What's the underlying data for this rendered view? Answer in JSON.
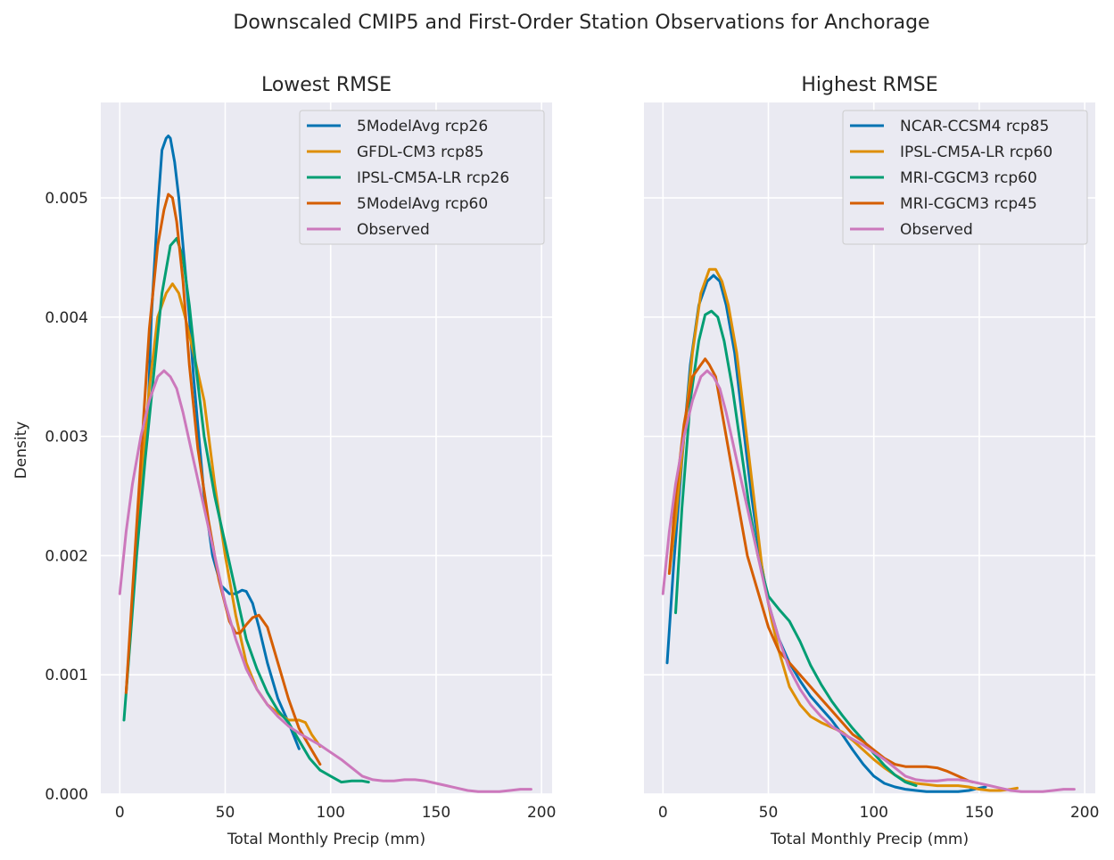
{
  "figure": {
    "suptitle": "Downscaled CMIP5 and First-Order Station Observations for Anchorage"
  },
  "chart_data": [
    {
      "type": "line",
      "title": "Lowest RMSE",
      "xlabel": "Total Monthly Precip (mm)",
      "ylabel": "Density",
      "xlim": [
        -9,
        205
      ],
      "ylim": [
        0,
        0.0058
      ],
      "xticks": [
        "0",
        "50",
        "100",
        "150",
        "200"
      ],
      "yticks": [
        "0.000",
        "0.001",
        "0.002",
        "0.003",
        "0.004",
        "0.005"
      ],
      "grid": true,
      "legend_position": "top-right",
      "series": [
        {
          "name": "5ModelAvg rcp26",
          "color": "#0173b2",
          "x": [
            13,
            15,
            18,
            20,
            22,
            23,
            24,
            26,
            28,
            30,
            33,
            35,
            38,
            40,
            44,
            48,
            52,
            55,
            58,
            60,
            63,
            66,
            70,
            75,
            80,
            85
          ],
          "y": [
            0.00297,
            0.004,
            0.0049,
            0.0054,
            0.0055,
            0.00552,
            0.0055,
            0.0053,
            0.005,
            0.0046,
            0.004,
            0.0035,
            0.0029,
            0.0025,
            0.002,
            0.00175,
            0.00168,
            0.00168,
            0.00171,
            0.0017,
            0.0016,
            0.0014,
            0.0011,
            0.0008,
            0.0006,
            0.00038
          ]
        },
        {
          "name": "GFDL-CM3 rcp85",
          "color": "#de8f05",
          "x": [
            3,
            6,
            10,
            14,
            18,
            22,
            25,
            28,
            31,
            35,
            40,
            45,
            50,
            55,
            60,
            65,
            70,
            75,
            80,
            85,
            88,
            91,
            95
          ],
          "y": [
            0.00085,
            0.0016,
            0.0026,
            0.0034,
            0.004,
            0.0042,
            0.00428,
            0.0042,
            0.004,
            0.0037,
            0.0033,
            0.0026,
            0.002,
            0.0015,
            0.0011,
            0.00088,
            0.00075,
            0.00068,
            0.00062,
            0.00062,
            0.0006,
            0.0005,
            0.0004
          ]
        },
        {
          "name": "IPSL-CM5A-LR rcp26",
          "color": "#029e73",
          "x": [
            2,
            5,
            8,
            12,
            16,
            20,
            24,
            27,
            30,
            33,
            36,
            40,
            45,
            50,
            55,
            60,
            65,
            70,
            75,
            80,
            85,
            90,
            95,
            100,
            105,
            110,
            115,
            118
          ],
          "y": [
            0.00062,
            0.0013,
            0.002,
            0.0028,
            0.0035,
            0.0042,
            0.0046,
            0.00466,
            0.0045,
            0.0041,
            0.0036,
            0.003,
            0.0025,
            0.0021,
            0.0017,
            0.0013,
            0.00105,
            0.00085,
            0.0007,
            0.0006,
            0.00045,
            0.0003,
            0.0002,
            0.00015,
            0.0001,
            0.00011,
            0.00011,
            0.0001
          ]
        },
        {
          "name": "5ModelAvg rcp60",
          "color": "#d55e00",
          "x": [
            3,
            6,
            10,
            14,
            18,
            21,
            23,
            25,
            27,
            30,
            33,
            37,
            42,
            47,
            52,
            55,
            57,
            60,
            63,
            66,
            70,
            75,
            80,
            85,
            90,
            95
          ],
          "y": [
            0.00085,
            0.0017,
            0.0028,
            0.0039,
            0.0046,
            0.0049,
            0.00503,
            0.005,
            0.0048,
            0.0043,
            0.0036,
            0.0029,
            0.0023,
            0.0018,
            0.00145,
            0.00135,
            0.00135,
            0.00142,
            0.00148,
            0.0015,
            0.0014,
            0.0011,
            0.0008,
            0.00055,
            0.0004,
            0.00025
          ]
        },
        {
          "name": "Observed",
          "color": "#cc78bc",
          "x": [
            0,
            3,
            6,
            10,
            14,
            18,
            21,
            24,
            27,
            30,
            35,
            40,
            45,
            50,
            55,
            60,
            65,
            70,
            75,
            80,
            85,
            90,
            95,
            100,
            105,
            110,
            115,
            120,
            125,
            130,
            135,
            140,
            145,
            150,
            155,
            160,
            165,
            170,
            175,
            180,
            185,
            190,
            195
          ],
          "y": [
            0.00168,
            0.0022,
            0.0026,
            0.003,
            0.0033,
            0.0035,
            0.00355,
            0.0035,
            0.0034,
            0.0032,
            0.0028,
            0.0024,
            0.002,
            0.0016,
            0.0013,
            0.00105,
            0.00088,
            0.00075,
            0.00065,
            0.00057,
            0.00051,
            0.00046,
            0.00041,
            0.00035,
            0.00029,
            0.00022,
            0.00015,
            0.00012,
            0.00011,
            0.00011,
            0.00012,
            0.00012,
            0.00011,
            9e-05,
            7e-05,
            5e-05,
            3e-05,
            2e-05,
            2e-05,
            2e-05,
            3e-05,
            4e-05,
            4e-05
          ]
        }
      ]
    },
    {
      "type": "line",
      "title": "Highest RMSE",
      "xlabel": "Total Monthly Precip (mm)",
      "ylabel": "",
      "xlim": [
        -9,
        205
      ],
      "ylim": [
        0,
        0.0058
      ],
      "xticks": [
        "0",
        "50",
        "100",
        "150",
        "200"
      ],
      "yticks": [],
      "grid": true,
      "legend_position": "top-right",
      "series": [
        {
          "name": "NCAR-CCSM4 rcp85",
          "color": "#0173b2",
          "x": [
            2,
            5,
            9,
            13,
            17,
            21,
            24,
            27,
            30,
            34,
            38,
            42,
            46,
            50,
            55,
            60,
            65,
            70,
            75,
            80,
            85,
            90,
            95,
            100,
            105,
            110,
            115,
            120,
            125,
            130,
            135,
            140,
            145,
            150,
            153
          ],
          "y": [
            0.0011,
            0.0019,
            0.0028,
            0.0036,
            0.0041,
            0.0043,
            0.00435,
            0.0043,
            0.0041,
            0.0037,
            0.0031,
            0.0025,
            0.002,
            0.0016,
            0.0013,
            0.0011,
            0.00095,
            0.00082,
            0.00072,
            0.00062,
            0.0005,
            0.00037,
            0.00025,
            0.00015,
            9e-05,
            6e-05,
            4e-05,
            3e-05,
            2e-05,
            2e-05,
            2e-05,
            2e-05,
            3e-05,
            5e-05,
            6e-05
          ]
        },
        {
          "name": "IPSL-CM5A-LR rcp60",
          "color": "#de8f05",
          "x": [
            3,
            6,
            10,
            14,
            18,
            22,
            25,
            28,
            31,
            35,
            39,
            43,
            47,
            51,
            55,
            60,
            65,
            70,
            75,
            80,
            85,
            90,
            95,
            100,
            105,
            110,
            115,
            120,
            125,
            130,
            135,
            140,
            145,
            150,
            155,
            160,
            165,
            168
          ],
          "y": [
            0.00185,
            0.0023,
            0.003,
            0.0037,
            0.0042,
            0.0044,
            0.0044,
            0.0043,
            0.0041,
            0.0037,
            0.0031,
            0.0025,
            0.0019,
            0.0015,
            0.0012,
            0.0009,
            0.00075,
            0.00065,
            0.0006,
            0.00056,
            0.00052,
            0.00045,
            0.00037,
            0.00029,
            0.00022,
            0.00016,
            0.00011,
            9e-05,
            8e-05,
            7e-05,
            7e-05,
            7e-05,
            6e-05,
            4e-05,
            3e-05,
            3e-05,
            4e-05,
            5e-05
          ]
        },
        {
          "name": "MRI-CGCM3 rcp60",
          "color": "#029e73",
          "x": [
            6,
            9,
            13,
            17,
            20,
            23,
            26,
            29,
            33,
            37,
            41,
            45,
            50,
            55,
            60,
            65,
            70,
            75,
            80,
            85,
            90,
            95,
            100,
            105,
            110,
            115,
            120
          ],
          "y": [
            0.00152,
            0.0024,
            0.0033,
            0.0038,
            0.00402,
            0.00405,
            0.004,
            0.0038,
            0.0034,
            0.0029,
            0.0024,
            0.002,
            0.00166,
            0.00155,
            0.00145,
            0.00128,
            0.00108,
            0.00092,
            0.00078,
            0.00066,
            0.00055,
            0.00045,
            0.00034,
            0.00024,
            0.00016,
            0.0001,
            7e-05
          ]
        },
        {
          "name": "MRI-CGCM3 rcp45",
          "color": "#d55e00",
          "x": [
            3,
            6,
            10,
            14,
            18,
            20,
            22,
            25,
            28,
            32,
            36,
            40,
            45,
            50,
            55,
            60,
            65,
            70,
            75,
            80,
            85,
            90,
            95,
            100,
            105,
            110,
            115,
            120,
            125,
            130,
            135,
            140,
            145,
            147
          ],
          "y": [
            0.00185,
            0.0025,
            0.0031,
            0.0035,
            0.0036,
            0.00365,
            0.0036,
            0.0035,
            0.0032,
            0.0028,
            0.0024,
            0.002,
            0.0017,
            0.0014,
            0.0012,
            0.0011,
            0.001,
            0.0009,
            0.0008,
            0.0007,
            0.0006,
            0.0005,
            0.00044,
            0.00037,
            0.0003,
            0.00025,
            0.00023,
            0.00023,
            0.00023,
            0.00022,
            0.00019,
            0.00015,
            0.00011,
            0.0001
          ]
        },
        {
          "name": "Observed",
          "color": "#cc78bc",
          "x": [
            0,
            3,
            6,
            10,
            14,
            18,
            21,
            24,
            27,
            30,
            35,
            40,
            45,
            50,
            55,
            60,
            65,
            70,
            75,
            80,
            85,
            90,
            95,
            100,
            105,
            110,
            115,
            120,
            125,
            130,
            135,
            140,
            145,
            150,
            155,
            160,
            165,
            170,
            175,
            180,
            185,
            190,
            195
          ],
          "y": [
            0.00168,
            0.0022,
            0.0026,
            0.003,
            0.0033,
            0.0035,
            0.00355,
            0.0035,
            0.0034,
            0.0032,
            0.0028,
            0.0024,
            0.002,
            0.0016,
            0.0013,
            0.00105,
            0.00088,
            0.00075,
            0.00065,
            0.00057,
            0.00051,
            0.00046,
            0.00041,
            0.00035,
            0.00029,
            0.00022,
            0.00015,
            0.00012,
            0.00011,
            0.00011,
            0.00012,
            0.00012,
            0.00011,
            9e-05,
            7e-05,
            5e-05,
            3e-05,
            2e-05,
            2e-05,
            2e-05,
            3e-05,
            4e-05,
            4e-05
          ]
        }
      ]
    }
  ]
}
